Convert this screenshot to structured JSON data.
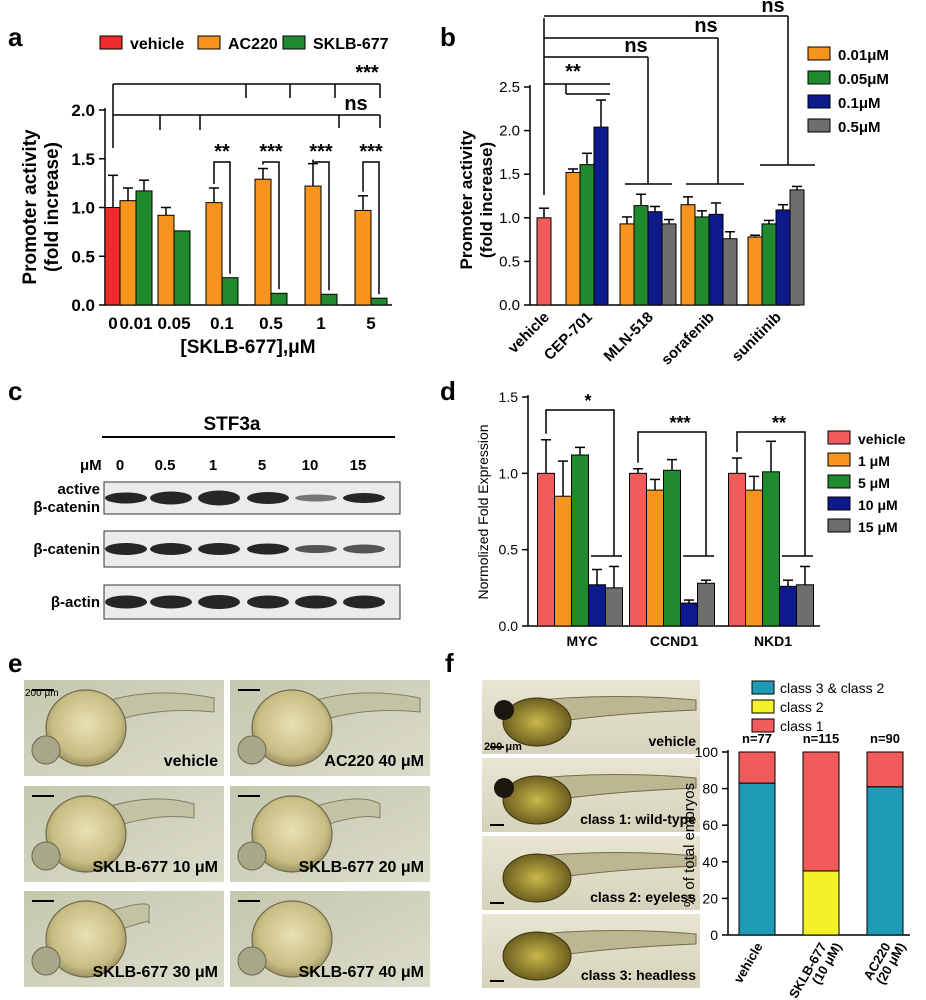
{
  "panels": {
    "a": {
      "letter": "a"
    },
    "b": {
      "letter": "b"
    },
    "c": {
      "letter": "c"
    },
    "d": {
      "letter": "d"
    },
    "e": {
      "letter": "e"
    },
    "f": {
      "letter": "f"
    }
  },
  "colors": {
    "red": "#ee2a2a",
    "orange": "#f7941d",
    "green": "#1f8a2e",
    "blue": "#0c1a8c",
    "gray": "#6e6e6e",
    "pink_red": "#f25b5b",
    "teal": "#1f9bb5",
    "yellow": "#f4f02a"
  },
  "chart_data": [
    {
      "panel": "a",
      "type": "bar",
      "title": "",
      "xlabel": "[SKLB-677],μM",
      "ylabel": "Promoter activity (fold increase)",
      "ylabel_lines": [
        "Promoter activity",
        "(fold increase)"
      ],
      "ylim": [
        0,
        2.0
      ],
      "yticks": [
        "0.0",
        "0.5",
        "1.0",
        "1.5",
        "2.0"
      ],
      "categories": [
        "0",
        "0.01",
        "0.05",
        "0.1",
        "0.5",
        "1",
        "5"
      ],
      "legend": [
        "vehicle",
        "AC220",
        "SKLB-677"
      ],
      "series": [
        {
          "name": "vehicle",
          "color": "#ee2a2a",
          "values": [
            1.0,
            null,
            null,
            null,
            null,
            null,
            null
          ],
          "errors": [
            0.33,
            null,
            null,
            null,
            null,
            null,
            null
          ]
        },
        {
          "name": "AC220",
          "color": "#f7941d",
          "values": [
            null,
            1.07,
            0.92,
            1.05,
            1.29,
            1.22,
            0.97
          ],
          "errors": [
            null,
            0.13,
            0.08,
            0.15,
            0.11,
            0.23,
            0.15
          ]
        },
        {
          "name": "SKLB-677",
          "color": "#1f8a2e",
          "values": [
            null,
            1.17,
            0.76,
            0.28,
            0.12,
            0.11,
            0.07
          ],
          "errors": [
            null,
            0.11,
            0.0,
            0.0,
            0.0,
            0.0,
            0.0
          ]
        }
      ],
      "annotations": [
        "**",
        "***",
        "***",
        "***",
        "ns",
        "***"
      ]
    },
    {
      "panel": "b",
      "type": "bar",
      "title": "",
      "xlabel": "",
      "ylabel": "Promoter activity (fold increase)",
      "ylabel_lines": [
        "Promoter activity",
        "(fold increase)"
      ],
      "ylim": [
        0,
        2.5
      ],
      "yticks": [
        "0.0",
        "0.5",
        "1.0",
        "1.5",
        "2.0",
        "2.5"
      ],
      "categories": [
        "vehicle",
        "CEP-701",
        "MLN-518",
        "sorafenib",
        "sunitinib"
      ],
      "legend": [
        "0.01μM",
        "0.05μM",
        "0.1μM",
        "0.5μM"
      ],
      "vehicle": {
        "value": 1.0,
        "error": 0.11,
        "color": "#f25b5b"
      },
      "series": [
        {
          "name": "0.01μM",
          "color": "#f7941d",
          "values": [
            null,
            1.52,
            0.93,
            1.15,
            0.78
          ],
          "errors": [
            null,
            0.04,
            0.08,
            0.09,
            0.02
          ]
        },
        {
          "name": "0.05μM",
          "color": "#1f8a2e",
          "values": [
            null,
            1.61,
            1.14,
            1.01,
            0.93
          ],
          "errors": [
            null,
            0.13,
            0.13,
            0.07,
            0.04
          ]
        },
        {
          "name": "0.1μM",
          "color": "#0c1a8c",
          "values": [
            null,
            2.04,
            1.07,
            1.04,
            1.09
          ],
          "errors": [
            null,
            0.31,
            0.06,
            0.13,
            0.06
          ]
        },
        {
          "name": "0.5μM",
          "color": "#6e6e6e",
          "values": [
            null,
            null,
            0.93,
            0.76,
            1.32
          ],
          "errors": [
            null,
            null,
            0.05,
            0.08,
            0.04
          ]
        }
      ],
      "annotations": [
        "**",
        "ns",
        "ns",
        "ns"
      ]
    },
    {
      "panel": "d",
      "type": "bar",
      "title": "",
      "xlabel": "",
      "ylabel": "Normolized Fold Expression",
      "ylim": [
        0,
        1.5
      ],
      "yticks": [
        "0.0",
        "0.5",
        "1.0",
        "1.5"
      ],
      "categories": [
        "MYC",
        "CCND1",
        "NKD1"
      ],
      "legend": [
        "vehicle",
        "1 μM",
        "5 μM",
        "10 μM",
        "15 μM"
      ],
      "series": [
        {
          "name": "vehicle",
          "color": "#f25b5b",
          "values": [
            1.0,
            1.0,
            1.0
          ],
          "errors": [
            0.22,
            0.03,
            0.1
          ]
        },
        {
          "name": "1 μM",
          "color": "#f7941d",
          "values": [
            0.85,
            0.89,
            0.89
          ],
          "errors": [
            0.23,
            0.07,
            0.09
          ]
        },
        {
          "name": "5 μM",
          "color": "#1f8a2e",
          "values": [
            1.12,
            1.02,
            1.01
          ],
          "errors": [
            0.05,
            0.07,
            0.2
          ]
        },
        {
          "name": "10 μM",
          "color": "#0c1a8c",
          "values": [
            0.27,
            0.15,
            0.26
          ],
          "errors": [
            0.1,
            0.02,
            0.04
          ]
        },
        {
          "name": "15 μM",
          "color": "#6e6e6e",
          "values": [
            0.25,
            0.28,
            0.27
          ],
          "errors": [
            0.14,
            0.02,
            0.12
          ]
        }
      ],
      "annotations": [
        "*",
        "***",
        "**"
      ]
    },
    {
      "panel": "f",
      "type": "bar",
      "stacked": true,
      "title": "",
      "xlabel": "",
      "ylabel": "% of total embryos",
      "ylim": [
        0,
        100
      ],
      "yticks": [
        "0",
        "20",
        "40",
        "60",
        "80",
        "100"
      ],
      "categories": [
        "vehicle",
        "SKLB-677 (10 μM)",
        "AC220 (20 μM)"
      ],
      "category_lines": [
        [
          "vehicle"
        ],
        [
          "SKLB-677",
          "(10 μM)"
        ],
        [
          "AC220",
          "(20 μM)"
        ]
      ],
      "counts": [
        "n=77",
        "n=115",
        "n=90"
      ],
      "legend": [
        "class 3 &  class 2",
        "class 2",
        "class 1"
      ],
      "series": [
        {
          "name": "class 3 &  class 2",
          "color": "#1f9bb5",
          "values": [
            83,
            0,
            81
          ]
        },
        {
          "name": "class 2",
          "color": "#f4f02a",
          "values": [
            0,
            35,
            0
          ]
        },
        {
          "name": "class 1",
          "color": "#f25b5b",
          "values": [
            17,
            65,
            19
          ]
        }
      ]
    }
  ],
  "blot": {
    "title": "STF3a",
    "unit": "μM",
    "doses": [
      "0",
      "0.5",
      "1",
      "5",
      "10",
      "15"
    ],
    "rows": [
      {
        "label_lines": [
          "active",
          "β-catenin"
        ]
      },
      {
        "label_lines": [
          "β-catenin"
        ]
      },
      {
        "label_lines": [
          "β-actin"
        ]
      }
    ]
  },
  "embryos_e": {
    "scale_bar": "200 μm",
    "tiles": [
      "vehicle",
      "AC220 40 μM",
      "SKLB-677 10 μM",
      "SKLB-677 20 μM",
      "SKLB-677 30 μM",
      "SKLB-677 40 μM"
    ]
  },
  "embryos_f": {
    "scale_bar": "200 μm",
    "tiles": [
      "vehicle",
      "class 1: wild-type",
      "class 2: eyeless",
      "class 3: headless"
    ]
  }
}
